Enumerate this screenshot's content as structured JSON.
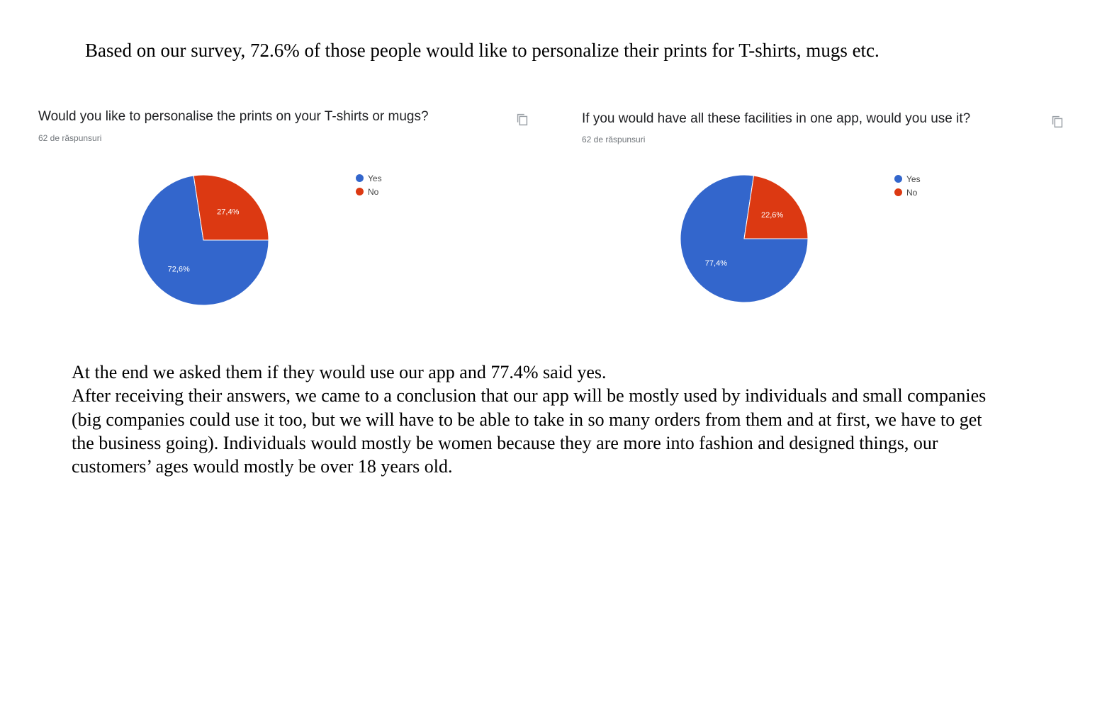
{
  "intro": "Based on our survey, 72.6% of those people would like to personalize their prints for T-shirts, mugs etc.",
  "colors": {
    "yes": "#3366cc",
    "no": "#dc3912"
  },
  "copy_icon": "copy-icon",
  "chart_data": [
    {
      "type": "pie",
      "title": "Would you like to personalise the prints on your T-shirts or mugs?",
      "subtitle": "62 de răspunsuri",
      "categories": [
        "Yes",
        "No"
      ],
      "values": [
        72.6,
        27.4
      ],
      "labels": [
        "72,6%",
        "27,4%"
      ],
      "legend": "right"
    },
    {
      "type": "pie",
      "title": "If you would have all these facilities in one app, would you use it?",
      "subtitle": "62 de răspunsuri",
      "categories": [
        "Yes",
        "No"
      ],
      "values": [
        77.4,
        22.6
      ],
      "labels": [
        "77,4%",
        "22,6%"
      ],
      "legend": "right"
    }
  ],
  "conclusion": {
    "line1": "At the end we asked them if they would use our app and 77.4% said yes.",
    "paragraph": "After receiving their answers, we came to a conclusion that our app will be mostly used by individuals and small companies (big companies could use it too, but we will have to be able to take in so many orders from them and at first, we have to get the business going). Individuals would mostly be women because they are more into fashion and designed things, our customers’ ages would mostly be over 18 years old."
  }
}
